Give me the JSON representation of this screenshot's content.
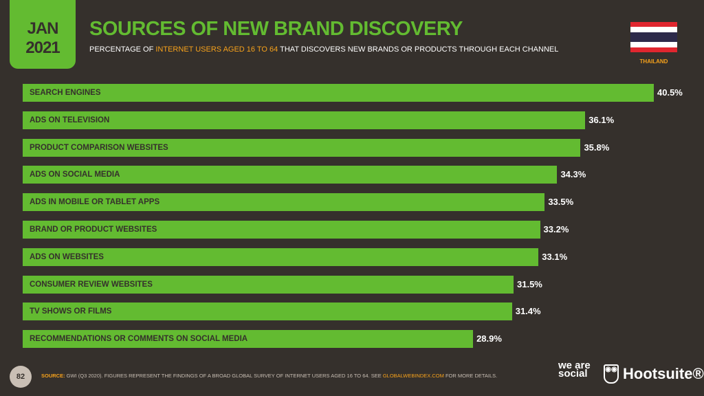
{
  "header": {
    "month": "JAN",
    "year": "2021",
    "title": "SOURCES OF NEW BRAND DISCOVERY",
    "subtitle_pre": "PERCENTAGE OF ",
    "subtitle_hl": "INTERNET USERS AGED 16 TO 64",
    "subtitle_post": " THAT DISCOVERS NEW BRANDS OR PRODUCTS THROUGH EACH CHANNEL",
    "country": "THAILAND"
  },
  "colors": {
    "bar": "#63bb31",
    "background": "#35302c",
    "accent": "#f7a21b"
  },
  "chart_data": {
    "type": "bar",
    "orientation": "horizontal",
    "title": "SOURCES OF NEW BRAND DISCOVERY",
    "categories": [
      "SEARCH ENGINES",
      "ADS ON TELEVISION",
      "PRODUCT COMPARISON WEBSITES",
      "ADS ON SOCIAL MEDIA",
      "ADS IN MOBILE OR TABLET APPS",
      "BRAND OR PRODUCT WEBSITES",
      "ADS ON WEBSITES",
      "CONSUMER REVIEW WEBSITES",
      "TV SHOWS OR FILMS",
      "RECOMMENDATIONS OR COMMENTS ON SOCIAL MEDIA"
    ],
    "values": [
      40.5,
      36.1,
      35.8,
      34.3,
      33.5,
      33.2,
      33.1,
      31.5,
      31.4,
      28.9
    ],
    "value_labels": [
      "40.5%",
      "36.1%",
      "35.8%",
      "34.3%",
      "33.5%",
      "33.2%",
      "33.1%",
      "31.5%",
      "31.4%",
      "28.9%"
    ],
    "unit": "%",
    "xlim": [
      0,
      40.5
    ]
  },
  "footer": {
    "page": "82",
    "source_label": "SOURCE:",
    "source_text": " GWI (Q3 2020). FIGURES REPRESENT THE FINDINGS OF A BROAD GLOBAL SURVEY OF INTERNET USERS AGED 16 TO 64. SEE ",
    "source_link": "GLOBALWEBINDEX.COM",
    "source_end": " FOR MORE DETAILS.",
    "logo_was": "we are social",
    "logo_hoot": "Hootsuite®"
  }
}
